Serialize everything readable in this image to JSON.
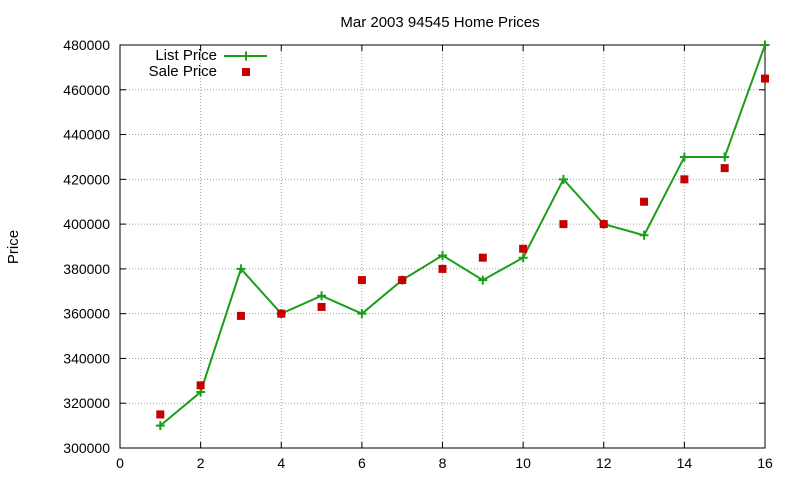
{
  "chart_data": {
    "type": "line",
    "title": "Mar 2003 94545 Home Prices",
    "xlabel": "",
    "ylabel": "Price",
    "xlim": [
      0,
      16
    ],
    "ylim": [
      300000,
      480000
    ],
    "x_ticks": [
      "0",
      "2",
      "4",
      "6",
      "8",
      "10",
      "12",
      "14",
      "16"
    ],
    "y_ticks": [
      "300000",
      "320000",
      "340000",
      "360000",
      "380000",
      "400000",
      "420000",
      "440000",
      "460000",
      "480000"
    ],
    "grid": true,
    "legend_position": "top-left",
    "x": [
      1,
      2,
      3,
      4,
      5,
      6,
      7,
      8,
      9,
      10,
      11,
      12,
      13,
      14,
      15,
      16
    ],
    "series": [
      {
        "name": "List Price",
        "style": "line-with-plus-markers",
        "color": "#1a9e1a",
        "values": [
          310000,
          325000,
          380000,
          360000,
          368000,
          360000,
          375000,
          386000,
          375000,
          385000,
          420000,
          400000,
          395000,
          430000,
          430000,
          480000
        ]
      },
      {
        "name": "Sale Price",
        "style": "square-markers",
        "color": "#c40000",
        "values": [
          315000,
          328000,
          359000,
          360000,
          363000,
          375000,
          375000,
          380000,
          385000,
          389000,
          400000,
          400000,
          410000,
          420000,
          425000,
          465000
        ]
      }
    ]
  }
}
